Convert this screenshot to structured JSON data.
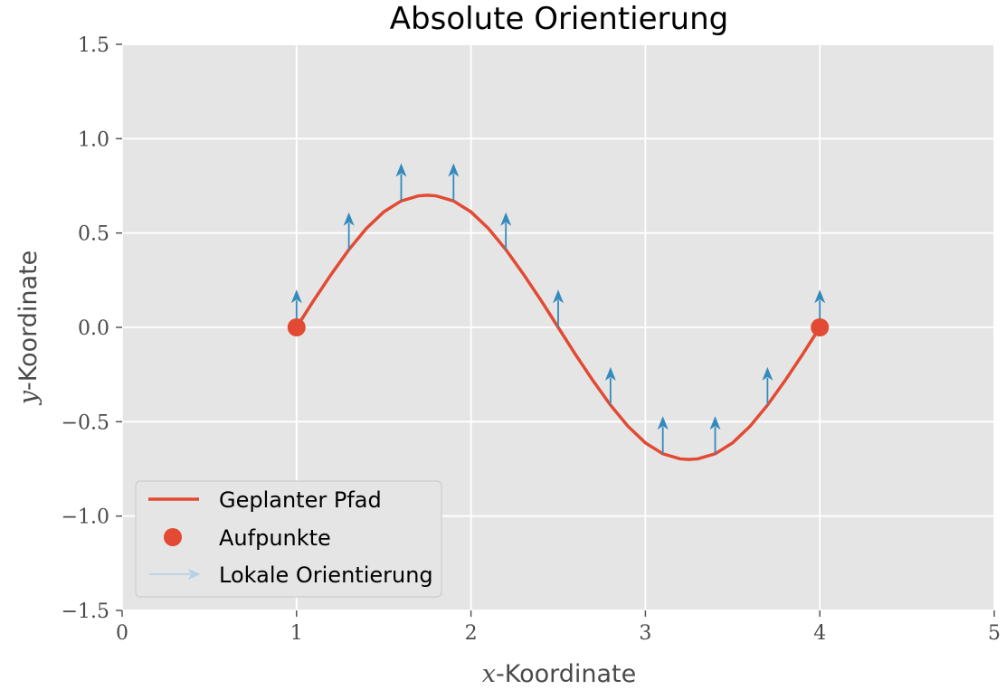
{
  "chart_data": {
    "type": "line",
    "title": "Absolute Orientierung",
    "xlabel": {
      "var": "x",
      "rest": "-Koordinate"
    },
    "ylabel": {
      "var": "y",
      "rest": "-Koordinate"
    },
    "xlim": [
      0,
      5
    ],
    "ylim": [
      -1.5,
      1.5
    ],
    "x_ticks": [
      0,
      1,
      2,
      3,
      4,
      5
    ],
    "y_ticks": [
      -1.5,
      -1.0,
      -0.5,
      0.0,
      0.5,
      1.0,
      1.5
    ],
    "x_tick_labels": [
      "0",
      "1",
      "2",
      "3",
      "4",
      "5"
    ],
    "y_tick_labels": [
      "−1.5",
      "−1.0",
      "−0.5",
      "0.0",
      "0.5",
      "1.0",
      "1.5"
    ],
    "grid": true,
    "legend_position": "lower-left",
    "colors": {
      "path": "#e24a33",
      "arrow": "#348abd",
      "legend_arrow": "#b8d0e3",
      "plot_bg": "#e5e5e5",
      "grid": "#ffffff"
    },
    "series": [
      {
        "name": "Geplanter Pfad",
        "kind": "line",
        "x": [
          1.0,
          1.1,
          1.2,
          1.3,
          1.4,
          1.5,
          1.6,
          1.7,
          1.75,
          1.8,
          1.9,
          2.0,
          2.1,
          2.2,
          2.3,
          2.4,
          2.5,
          2.6,
          2.7,
          2.8,
          2.9,
          3.0,
          3.1,
          3.2,
          3.25,
          3.3,
          3.4,
          3.5,
          3.6,
          3.7,
          3.8,
          3.9,
          4.0
        ],
        "y": [
          0.0,
          0.145,
          0.283,
          0.412,
          0.524,
          0.612,
          0.67,
          0.697,
          0.7,
          0.697,
          0.67,
          0.612,
          0.524,
          0.412,
          0.283,
          0.145,
          0.0,
          -0.145,
          -0.283,
          -0.412,
          -0.524,
          -0.612,
          -0.67,
          -0.697,
          -0.7,
          -0.697,
          -0.67,
          -0.612,
          -0.524,
          -0.412,
          -0.283,
          -0.145,
          0.0
        ]
      },
      {
        "name": "Aufpunkte",
        "kind": "points",
        "x": [
          1.0,
          4.0
        ],
        "y": [
          0.0,
          0.0
        ]
      },
      {
        "name": "Lokale Orientierung",
        "kind": "quiver",
        "x": [
          1.0,
          1.3,
          1.6,
          1.9,
          2.2,
          2.5,
          2.8,
          3.1,
          3.4,
          3.7,
          4.0
        ],
        "y": [
          0.0,
          0.41,
          0.67,
          0.67,
          0.41,
          0.0,
          -0.41,
          -0.67,
          -0.67,
          -0.41,
          0.0
        ],
        "u": [
          0,
          0,
          0,
          0,
          0,
          0,
          0,
          0,
          0,
          0,
          0
        ],
        "v": [
          0.2,
          0.2,
          0.2,
          0.2,
          0.2,
          0.2,
          0.2,
          0.2,
          0.2,
          0.2,
          0.2
        ]
      }
    ]
  }
}
